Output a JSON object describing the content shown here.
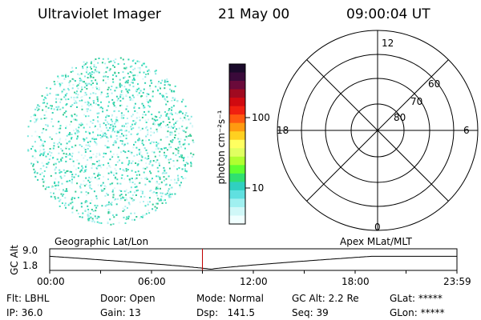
{
  "header": {
    "instrument": "Ultraviolet Imager",
    "date": "21 May 00",
    "time": "09:00:04 UT"
  },
  "colorbar": {
    "unit_label": "photon cm⁻²s⁻¹",
    "ticks": [
      "100",
      "10"
    ],
    "colors": [
      "#1a0a2a",
      "#3a0a3a",
      "#6a0a3a",
      "#a00a20",
      "#d00a10",
      "#f02010",
      "#ff5a10",
      "#ff9a10",
      "#ffd020",
      "#ffff60",
      "#e0ff60",
      "#b0ff30",
      "#60ff30",
      "#30e070",
      "#30d0c0",
      "#60e0e0",
      "#a0f0f0",
      "#d0f8f8",
      "#f0ffff"
    ]
  },
  "polar_plot": {
    "labels": {
      "top": "12",
      "bottom": "0",
      "left": "18",
      "right": "6"
    },
    "rings": [
      "60",
      "70",
      "80"
    ]
  },
  "timeline": {
    "left_title": "Geographic Lat/Lon",
    "right_title": "Apex MLat/MLT",
    "axis_label": "GC Alt",
    "y_max": "9.0",
    "y_min": "1.8",
    "time_ticks": [
      "00:00",
      "06:00",
      "12:00",
      "18:00",
      "23:59"
    ],
    "marker_time": "09:00:04"
  },
  "info": {
    "flt": "Flt: LBHL",
    "ip": "IP: 36.0",
    "door": "Door: Open",
    "gain": "Gain: 13",
    "mode": "Mode: Normal",
    "dsp": "Dsp:   141.5",
    "gc_alt": "GC Alt: 2.2 Re",
    "seq": "Seq: 39",
    "glat": "GLat: *****",
    "glon": "GLon: *****"
  }
}
